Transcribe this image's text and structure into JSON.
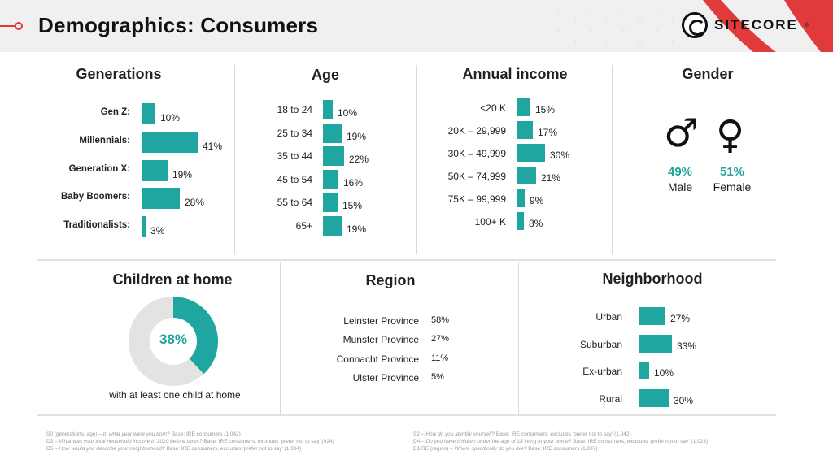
{
  "header": {
    "title": "Demographics: Consumers",
    "logo_text": "SITECORE",
    "logo_trademark": "®"
  },
  "colors": {
    "accent": "#20a6a0",
    "brand_red": "#e03a3a",
    "donut_rest": "#e3e3e3"
  },
  "generations": {
    "title": "Generations",
    "items": [
      {
        "label": "Gen Z:",
        "pct": "10%",
        "value": 10
      },
      {
        "label": "Millennials:",
        "pct": "41%",
        "value": 41
      },
      {
        "label": "Generation X:",
        "pct": "19%",
        "value": 19
      },
      {
        "label": "Baby Boomers:",
        "pct": "28%",
        "value": 28
      },
      {
        "label": "Traditionalists:",
        "pct": "3%",
        "value": 3
      }
    ]
  },
  "age": {
    "title": "Age",
    "items": [
      {
        "label": "18 to 24",
        "pct": "10%",
        "value": 10
      },
      {
        "label": "25 to 34",
        "pct": "19%",
        "value": 19
      },
      {
        "label": "35 to 44",
        "pct": "22%",
        "value": 22
      },
      {
        "label": "45 to 54",
        "pct": "16%",
        "value": 16
      },
      {
        "label": "55 to 64",
        "pct": "15%",
        "value": 15
      },
      {
        "label": "65+",
        "pct": "19%",
        "value": 19
      }
    ]
  },
  "income": {
    "title": "Annual income",
    "items": [
      {
        "label": "<20 K",
        "pct": "15%",
        "value": 15
      },
      {
        "label": "20K – 29,999",
        "pct": "17%",
        "value": 17
      },
      {
        "label": "30K – 49,999",
        "pct": "30%",
        "value": 30
      },
      {
        "label": "50K – 74,999",
        "pct": "21%",
        "value": 21
      },
      {
        "label": "75K – 99,999",
        "pct": "9%",
        "value": 9
      },
      {
        "label": "100+ K",
        "pct": "8%",
        "value": 8
      }
    ]
  },
  "gender": {
    "title": "Gender",
    "male_symbol": "♂",
    "female_symbol": "♀",
    "male_pct": "49%",
    "male_label": "Male",
    "female_pct": "51%",
    "female_label": "Female"
  },
  "children": {
    "title": "Children at home",
    "pct": "38%",
    "value": 38,
    "caption": "with at least one child at home"
  },
  "region": {
    "title": "Region",
    "items": [
      {
        "label": "Leinster Province",
        "pct": "58%"
      },
      {
        "label": "Munster Province",
        "pct": "27%"
      },
      {
        "label": "Connacht Province",
        "pct": "11%"
      },
      {
        "label": "Ulster Province",
        "pct": "5%"
      }
    ]
  },
  "neighborhood": {
    "title": "Neighborhood",
    "items": [
      {
        "label": "Urban",
        "pct": "27%",
        "value": 27
      },
      {
        "label": "Suburban",
        "pct": "33%",
        "value": 33
      },
      {
        "label": "Ex-urban",
        "pct": "10%",
        "value": 10
      },
      {
        "label": "Rural",
        "pct": "30%",
        "value": 30
      }
    ]
  },
  "footnotes": {
    "left": [
      {
        "code": "S0 (generations, age) –",
        "question": "In what year were you born?",
        "base": "Base: IRE consumers (1,042)"
      },
      {
        "code": "D3 –",
        "question": "What was your total household income in 2020 before taxes?",
        "base": "Base: IRE consumers, excludes 'prefer not to say' (924)"
      },
      {
        "code": "D5 –",
        "question": "How would you describe your neighborhood?",
        "base": "Base: IRE consumers, excludes 'prefer not to say' (1,034)"
      }
    ],
    "right": [
      {
        "code": "S2 –",
        "question": "How do you identify yourself?",
        "base": "Base: IRE consumers, excludes 'prefer not to say' (1,042)"
      },
      {
        "code": "D4 –",
        "question": "Do you have children under the age of 18 living in your home?",
        "base": "Base: IRE consumers, excludes 'prefer not to say' (1,023)"
      },
      {
        "code": "D1IRE (region) –",
        "question": "Where specifically do you live?",
        "base": "Base: IRE consumers (1,037)"
      }
    ]
  }
}
